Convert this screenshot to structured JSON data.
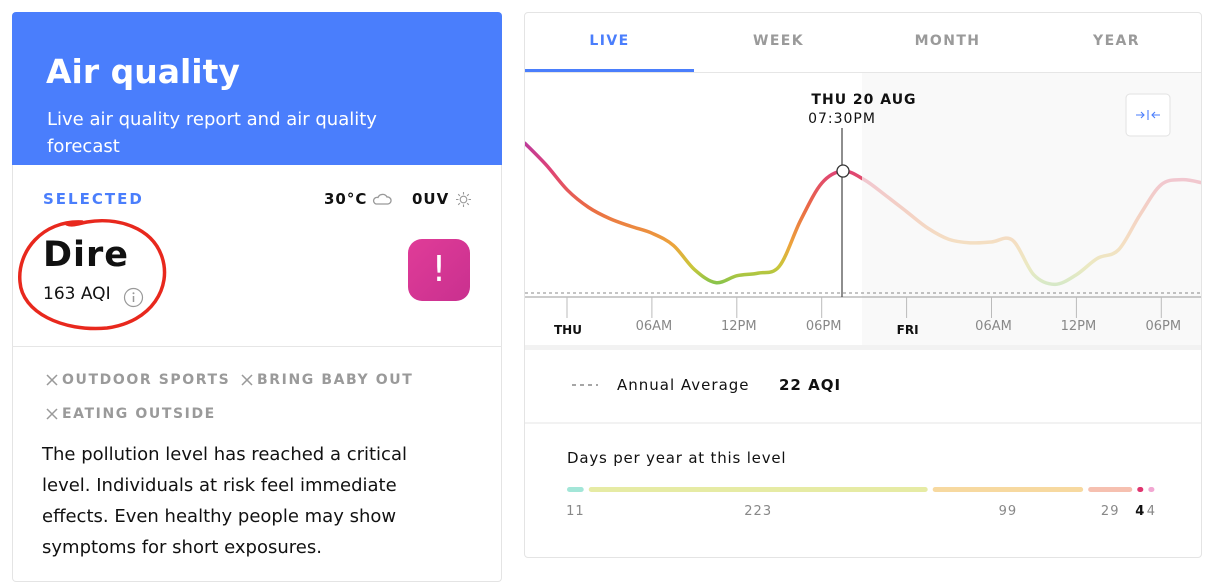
{
  "header": {
    "title": "Air quality",
    "subtitle": "Live air quality report and air quality forecast"
  },
  "selected": {
    "label": "SELECTED",
    "temperature": "30°C",
    "uv": "0UV",
    "level": "Dire",
    "aqi": "163 AQI",
    "icon": "!"
  },
  "warnings": [
    "OUTDOOR SPORTS",
    "BRING BABY OUT",
    "EATING OUTSIDE"
  ],
  "description": "The pollution level has reached a critical level. Individuals at risk feel immediate effects. Even healthy people may show symptoms for short exposures.",
  "tabs": [
    "LIVE",
    "WEEK",
    "MONTH",
    "YEAR"
  ],
  "chart": {
    "tooltip_date": "THU 20 AUG",
    "tooltip_time": "07:30PM",
    "x_labels": [
      "THU",
      "06AM",
      "12PM",
      "06PM",
      "FRI",
      "06AM",
      "12PM",
      "06PM"
    ],
    "values": [
      195,
      170,
      141,
      121,
      108,
      99,
      91,
      77,
      49,
      34,
      42,
      45,
      53,
      106,
      149,
      163,
      153,
      135,
      116,
      97,
      84,
      80,
      81,
      83,
      43,
      32,
      43,
      62,
      72,
      112,
      147,
      153,
      149
    ]
  },
  "annual": {
    "label": "Annual Average",
    "value": 22,
    "value_label": "22 AQI"
  },
  "days": {
    "title": "Days per year at this level",
    "values": [
      11,
      223,
      99,
      29,
      4,
      4
    ],
    "colors": [
      "#a3e6d8",
      "#e6eba4",
      "#f7d9a0",
      "#f6c0b0",
      "#e0356f",
      "#f2a7d2"
    ]
  }
}
